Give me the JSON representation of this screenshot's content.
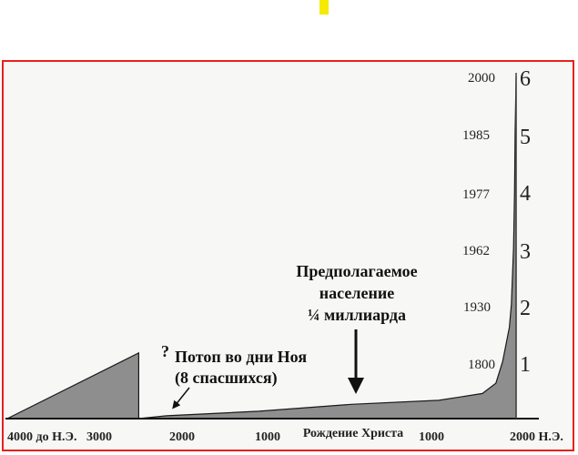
{
  "colors": {
    "accent": "#f5ea00",
    "frame": "#e8211c",
    "fill": "#8e8e8e"
  },
  "chart_data": {
    "type": "area",
    "title": "",
    "xlabel": "",
    "ylabel": "",
    "x_ticks": [
      "4000 до Н.Э.",
      "3000",
      "2000",
      "1000",
      "Рождение Христа",
      "1000",
      "2000 Н.Э."
    ],
    "ylim": [
      0,
      6
    ],
    "y_ticks": [
      "1",
      "2",
      "3",
      "4",
      "5",
      "6"
    ],
    "right_year_labels": [
      "1800",
      "1930",
      "1962",
      "1977",
      "1985",
      "2000"
    ],
    "series": [
      {
        "x": [
          -4000,
          -2350
        ],
        "y": [
          0.0,
          1.15
        ]
      },
      {
        "x": [
          -2350,
          -2000,
          -1000,
          0,
          1000,
          1500,
          1700,
          1800,
          1850,
          1900,
          1930,
          1962,
          1977,
          1985,
          2000
        ],
        "y": [
          0.0,
          0.05,
          0.13,
          0.25,
          0.32,
          0.44,
          0.62,
          1.0,
          1.3,
          1.6,
          2.0,
          3.0,
          4.0,
          5.0,
          6.0
        ]
      }
    ]
  },
  "annotations": {
    "question_mark": "?",
    "flood_line1": "Потоп во дни Ноя",
    "flood_line2": "(8 спасшихся)",
    "pop_line1": "Предполагаемое",
    "pop_line2": "население",
    "pop_line3": "¼ миллиарда"
  }
}
